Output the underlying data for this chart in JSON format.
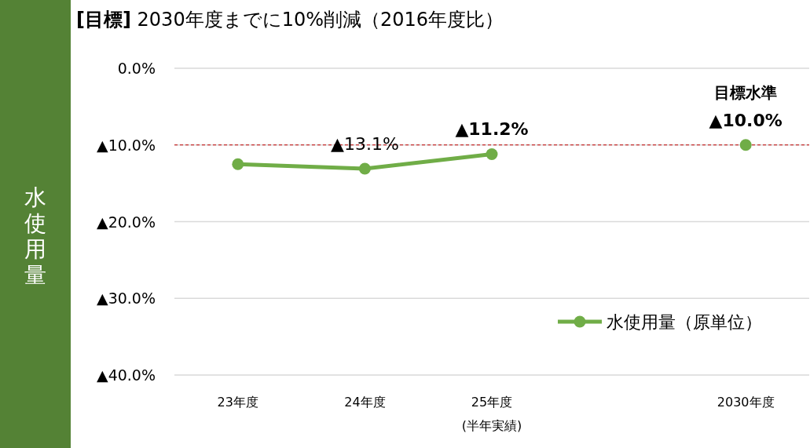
{
  "chart_data": {
    "type": "line",
    "title": "**[目標]**  2030年度までに10%削減（2016年度比）",
    "ylabel": "水使用量",
    "categories": [
      "23年度",
      "24年度",
      "25年度\n(半年実績)",
      null,
      "2030年度"
    ],
    "series": [
      {
        "name": "水使用量（原単位）",
        "color": "#70ad47",
        "values": [
          12.5,
          13.1,
          11.2,
          null,
          10.0
        ],
        "value_labels": [
          null,
          "▲13.1%",
          "**▲11.2%**",
          null,
          "**▲10.0%**"
        ]
      }
    ],
    "ylim": [
      40,
      0
    ],
    "yticks": [
      {
        "value": 0,
        "label": "0.0%"
      },
      {
        "value": 10,
        "label": "▲10.0%"
      },
      {
        "value": 20,
        "label": "▲20.0%"
      },
      {
        "value": 30,
        "label": "▲30.0%"
      },
      {
        "value": 40,
        "label": "▲40.0%"
      }
    ],
    "grid": "y",
    "legend": "bottom right",
    "marker": "circle",
    "ref_lines": [
      {
        "axis": "y",
        "value": 10,
        "color": "#c00000",
        "line_style": "dashed"
      }
    ],
    "annotations": [
      {
        "text": "目標水準",
        "x": "2030年度",
        "y": 10
      }
    ]
  }
}
